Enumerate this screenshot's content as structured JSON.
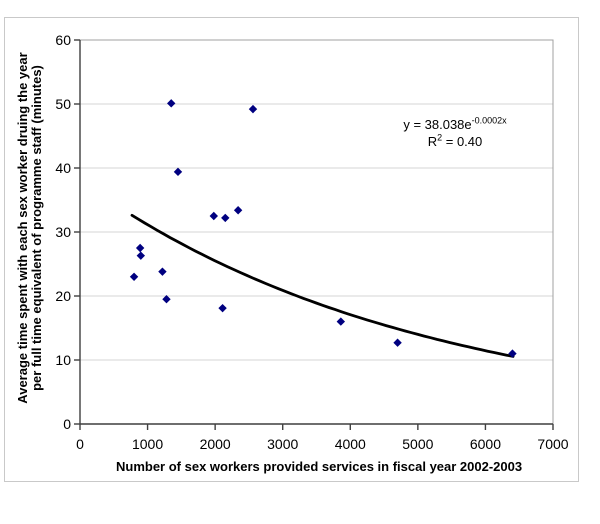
{
  "chart_data": {
    "type": "scatter",
    "xlabel": "Number of sex workers provided services in fiscal year 2002-2003",
    "ylabel_line1": "Average time spent with each sex worker druing the year",
    "ylabel_line2": "per full time equivalent of programme staff (minutes)",
    "xlim": [
      0,
      7000
    ],
    "ylim": [
      0,
      60
    ],
    "x_ticks": [
      0,
      1000,
      2000,
      3000,
      4000,
      5000,
      6000,
      7000
    ],
    "y_ticks": [
      0,
      10,
      20,
      30,
      40,
      50,
      60
    ],
    "grid": "horizontal",
    "legend": "none",
    "points": [
      [
        800,
        23
      ],
      [
        890,
        27.5
      ],
      [
        900,
        26.3
      ],
      [
        1220,
        23.8
      ],
      [
        1280,
        19.5
      ],
      [
        1350,
        50.1
      ],
      [
        1450,
        39.4
      ],
      [
        1980,
        32.5
      ],
      [
        2110,
        18.1
      ],
      [
        2150,
        32.2
      ],
      [
        2340,
        33.4
      ],
      [
        2560,
        49.2
      ],
      [
        3860,
        16
      ],
      [
        4700,
        12.7
      ],
      [
        6400,
        11
      ]
    ],
    "trendline": {
      "type": "exponential",
      "a": 38.038,
      "b": -0.0002,
      "x_start": 770,
      "x_end": 6410
    },
    "annotation": {
      "equation_base": "y = 38.038e",
      "equation_exponent": "-0.0002x",
      "r2_base": "R",
      "r2_sup": "2",
      "r2_rest": " = 0.40"
    },
    "marker_color": "#000080",
    "trend_color": "#000000",
    "grid_color": "#d4d4d4",
    "axis_color": "#3f3f3f",
    "plot_border_color": "#a0a0a0"
  }
}
